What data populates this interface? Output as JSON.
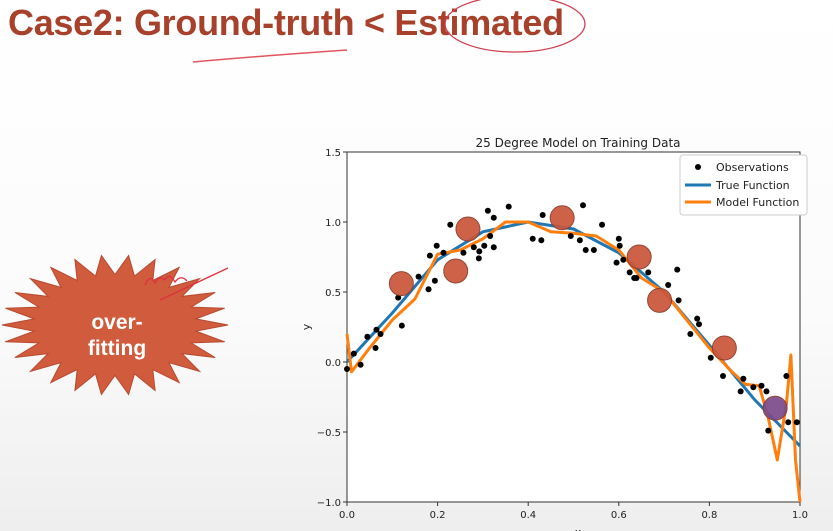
{
  "slide": {
    "title": "Case2: Ground-truth < Estimated",
    "burst_label_line1": "over-",
    "burst_label_line2": "fitting",
    "title_color": "#a8412b",
    "burst_color": "#d05b3d"
  },
  "chart_data": {
    "type": "scatter",
    "title": "25 Degree Model on Training Data",
    "xlabel": "x",
    "ylabel": "y",
    "xlim": [
      0.0,
      1.0
    ],
    "ylim": [
      -1.0,
      1.5
    ],
    "xticks": [
      "0.0",
      "0.2",
      "0.4",
      "0.6",
      "0.8",
      "1.0"
    ],
    "yticks": [
      "-1.0",
      "-0.5",
      "0.0",
      "0.5",
      "1.0",
      "1.5"
    ],
    "xtick_values": [
      0,
      0.2,
      0.4,
      0.6,
      0.8,
      1.0
    ],
    "ytick_values": [
      -1.0,
      -0.5,
      0,
      0.5,
      1.0,
      1.5
    ],
    "grid": false,
    "legend_position": "top-right",
    "legend": [
      "Observations",
      "True Function",
      "Model Function"
    ],
    "colors": {
      "observations": "#000000",
      "true_function": "#1f77b4",
      "model_function": "#ff7f0e",
      "highlight": "#c9553a",
      "highlight_last": "#7b4a8c"
    },
    "observations": [
      [
        0,
        -0.05
      ],
      [
        0.015,
        0.06
      ],
      [
        0.03,
        -0.02
      ],
      [
        0.045,
        0.18
      ],
      [
        0.063,
        0.1
      ],
      [
        0.065,
        0.23
      ],
      [
        0.074,
        0.2
      ],
      [
        0.113,
        0.46
      ],
      [
        0.121,
        0.26
      ],
      [
        0.158,
        0.61
      ],
      [
        0.18,
        0.52
      ],
      [
        0.183,
        0.76
      ],
      [
        0.194,
        0.58
      ],
      [
        0.198,
        0.83
      ],
      [
        0.213,
        0.78
      ],
      [
        0.228,
        0.98
      ],
      [
        0.257,
        0.78
      ],
      [
        0.28,
        0.82
      ],
      [
        0.291,
        0.74
      ],
      [
        0.292,
        0.79
      ],
      [
        0.303,
        0.83
      ],
      [
        0.311,
        1.08
      ],
      [
        0.316,
        0.9
      ],
      [
        0.324,
        0.82
      ],
      [
        0.324,
        1.03
      ],
      [
        0.357,
        1.11
      ],
      [
        0.41,
        0.88
      ],
      [
        0.429,
        0.87
      ],
      [
        0.432,
        1.05
      ],
      [
        0.494,
        0.9
      ],
      [
        0.514,
        0.87
      ],
      [
        0.521,
        1.12
      ],
      [
        0.527,
        0.8
      ],
      [
        0.545,
        0.8
      ],
      [
        0.563,
        0.98
      ],
      [
        0.595,
        0.71
      ],
      [
        0.6,
        0.88
      ],
      [
        0.602,
        0.83
      ],
      [
        0.61,
        0.73
      ],
      [
        0.624,
        0.64
      ],
      [
        0.634,
        0.6
      ],
      [
        0.639,
        0.6
      ],
      [
        0.665,
        0.64
      ],
      [
        0.709,
        0.55
      ],
      [
        0.729,
        0.66
      ],
      [
        0.732,
        0.44
      ],
      [
        0.758,
        0.2
      ],
      [
        0.773,
        0.31
      ],
      [
        0.777,
        0.27
      ],
      [
        0.803,
        0.03
      ],
      [
        0.83,
        -0.1
      ],
      [
        0.869,
        -0.21
      ],
      [
        0.875,
        -0.12
      ],
      [
        0.897,
        -0.18
      ],
      [
        0.915,
        -0.17
      ],
      [
        0.926,
        -0.21
      ],
      [
        0.93,
        -0.49
      ],
      [
        0.97,
        -0.1
      ],
      [
        0.974,
        -0.43
      ],
      [
        0.993,
        -0.43
      ]
    ],
    "true_function": [
      [
        0,
        0
      ],
      [
        0.1,
        0.35
      ],
      [
        0.2,
        0.73
      ],
      [
        0.3,
        0.93
      ],
      [
        0.4,
        1.0
      ],
      [
        0.5,
        0.95
      ],
      [
        0.6,
        0.78
      ],
      [
        0.7,
        0.5
      ],
      [
        0.8,
        0.12
      ],
      [
        0.9,
        -0.27
      ],
      [
        1.0,
        -0.6
      ]
    ],
    "model_function": [
      [
        0,
        0.2
      ],
      [
        0.01,
        -0.07
      ],
      [
        0.05,
        0.1
      ],
      [
        0.1,
        0.3
      ],
      [
        0.15,
        0.45
      ],
      [
        0.2,
        0.77
      ],
      [
        0.25,
        0.8
      ],
      [
        0.3,
        0.88
      ],
      [
        0.35,
        1.0
      ],
      [
        0.4,
        1.0
      ],
      [
        0.45,
        0.93
      ],
      [
        0.5,
        0.92
      ],
      [
        0.55,
        0.9
      ],
      [
        0.6,
        0.8
      ],
      [
        0.65,
        0.6
      ],
      [
        0.7,
        0.5
      ],
      [
        0.75,
        0.3
      ],
      [
        0.8,
        0.1
      ],
      [
        0.85,
        -0.07
      ],
      [
        0.88,
        -0.16
      ],
      [
        0.91,
        -0.17
      ],
      [
        0.93,
        -0.4
      ],
      [
        0.95,
        -0.7
      ],
      [
        0.97,
        -0.3
      ],
      [
        0.98,
        0.05
      ],
      [
        0.99,
        -0.7
      ],
      [
        1.0,
        -1.0
      ]
    ],
    "highlighted_points": [
      [
        0.12,
        0.56
      ],
      [
        0.24,
        0.65
      ],
      [
        0.267,
        0.95
      ],
      [
        0.475,
        1.03
      ],
      [
        0.645,
        0.75
      ],
      [
        0.69,
        0.44
      ],
      [
        0.833,
        0.1
      ],
      [
        0.945,
        -0.33
      ]
    ]
  }
}
